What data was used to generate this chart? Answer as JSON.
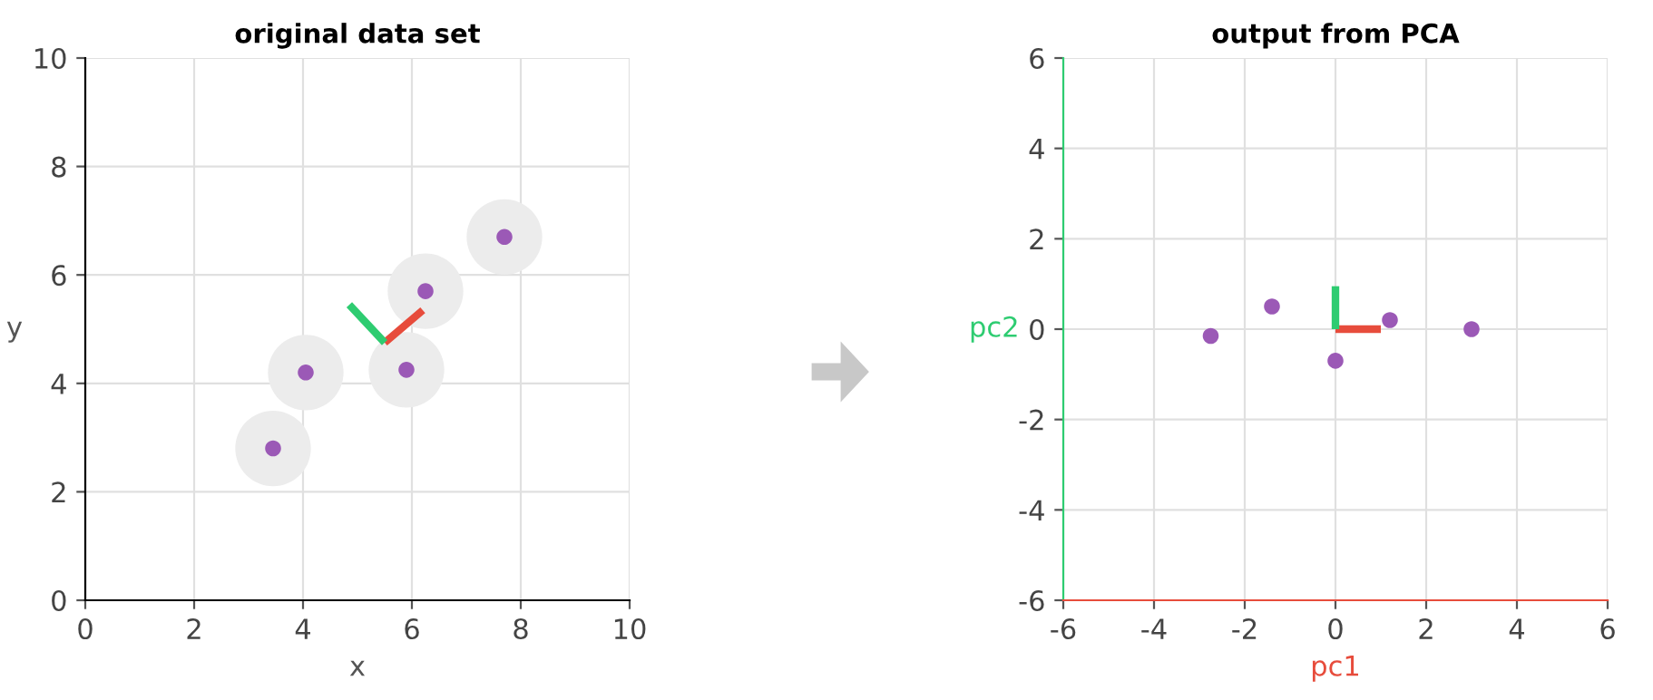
{
  "chart_data": [
    {
      "type": "scatter",
      "title": "original data set",
      "xlabel": "x",
      "ylabel": "y",
      "xlim": [
        0,
        10
      ],
      "ylim": [
        0,
        10
      ],
      "xticks": [
        0,
        2,
        4,
        6,
        8,
        10
      ],
      "yticks": [
        0,
        2,
        4,
        6,
        8,
        10
      ],
      "grid": true,
      "line_style": "solid",
      "series": [
        {
          "marker": "circle",
          "color": "#9b59b6",
          "x": [
            3.45,
            4.05,
            5.9,
            6.25,
            7.7
          ],
          "values": [
            2.8,
            4.2,
            4.25,
            5.7,
            6.7
          ]
        },
        {
          "type": "line",
          "color": "#e74c3c",
          "x": [
            5.5,
            6.2
          ],
          "values": [
            4.75,
            5.35
          ]
        },
        {
          "type": "line",
          "color": "#2ecc71",
          "x": [
            5.5,
            4.85
          ],
          "values": [
            4.75,
            5.45
          ]
        }
      ]
    },
    {
      "type": "scatter",
      "title": "output from PCA",
      "xlabel": "pc1",
      "ylabel": "pc2",
      "xlim": [
        -6,
        6
      ],
      "ylim": [
        -6,
        6
      ],
      "xticks": [
        -6,
        -4,
        -2,
        0,
        2,
        4,
        6
      ],
      "yticks": [
        -6,
        -4,
        -2,
        0,
        2,
        4,
        6
      ],
      "grid": true,
      "line_style": "solid",
      "series": [
        {
          "marker": "circle",
          "color": "#9b59b6",
          "x": [
            -2.75,
            -1.4,
            0,
            1.2,
            3
          ],
          "values": [
            -0.15,
            0.5,
            -0.7,
            0.2,
            0
          ]
        },
        {
          "type": "line",
          "color": "#e74c3c",
          "x": [
            0,
            1
          ],
          "values": [
            0,
            0
          ]
        },
        {
          "type": "line",
          "color": "#2ecc71",
          "x": [
            0,
            0
          ],
          "values": [
            0,
            0.95
          ]
        }
      ]
    }
  ]
}
